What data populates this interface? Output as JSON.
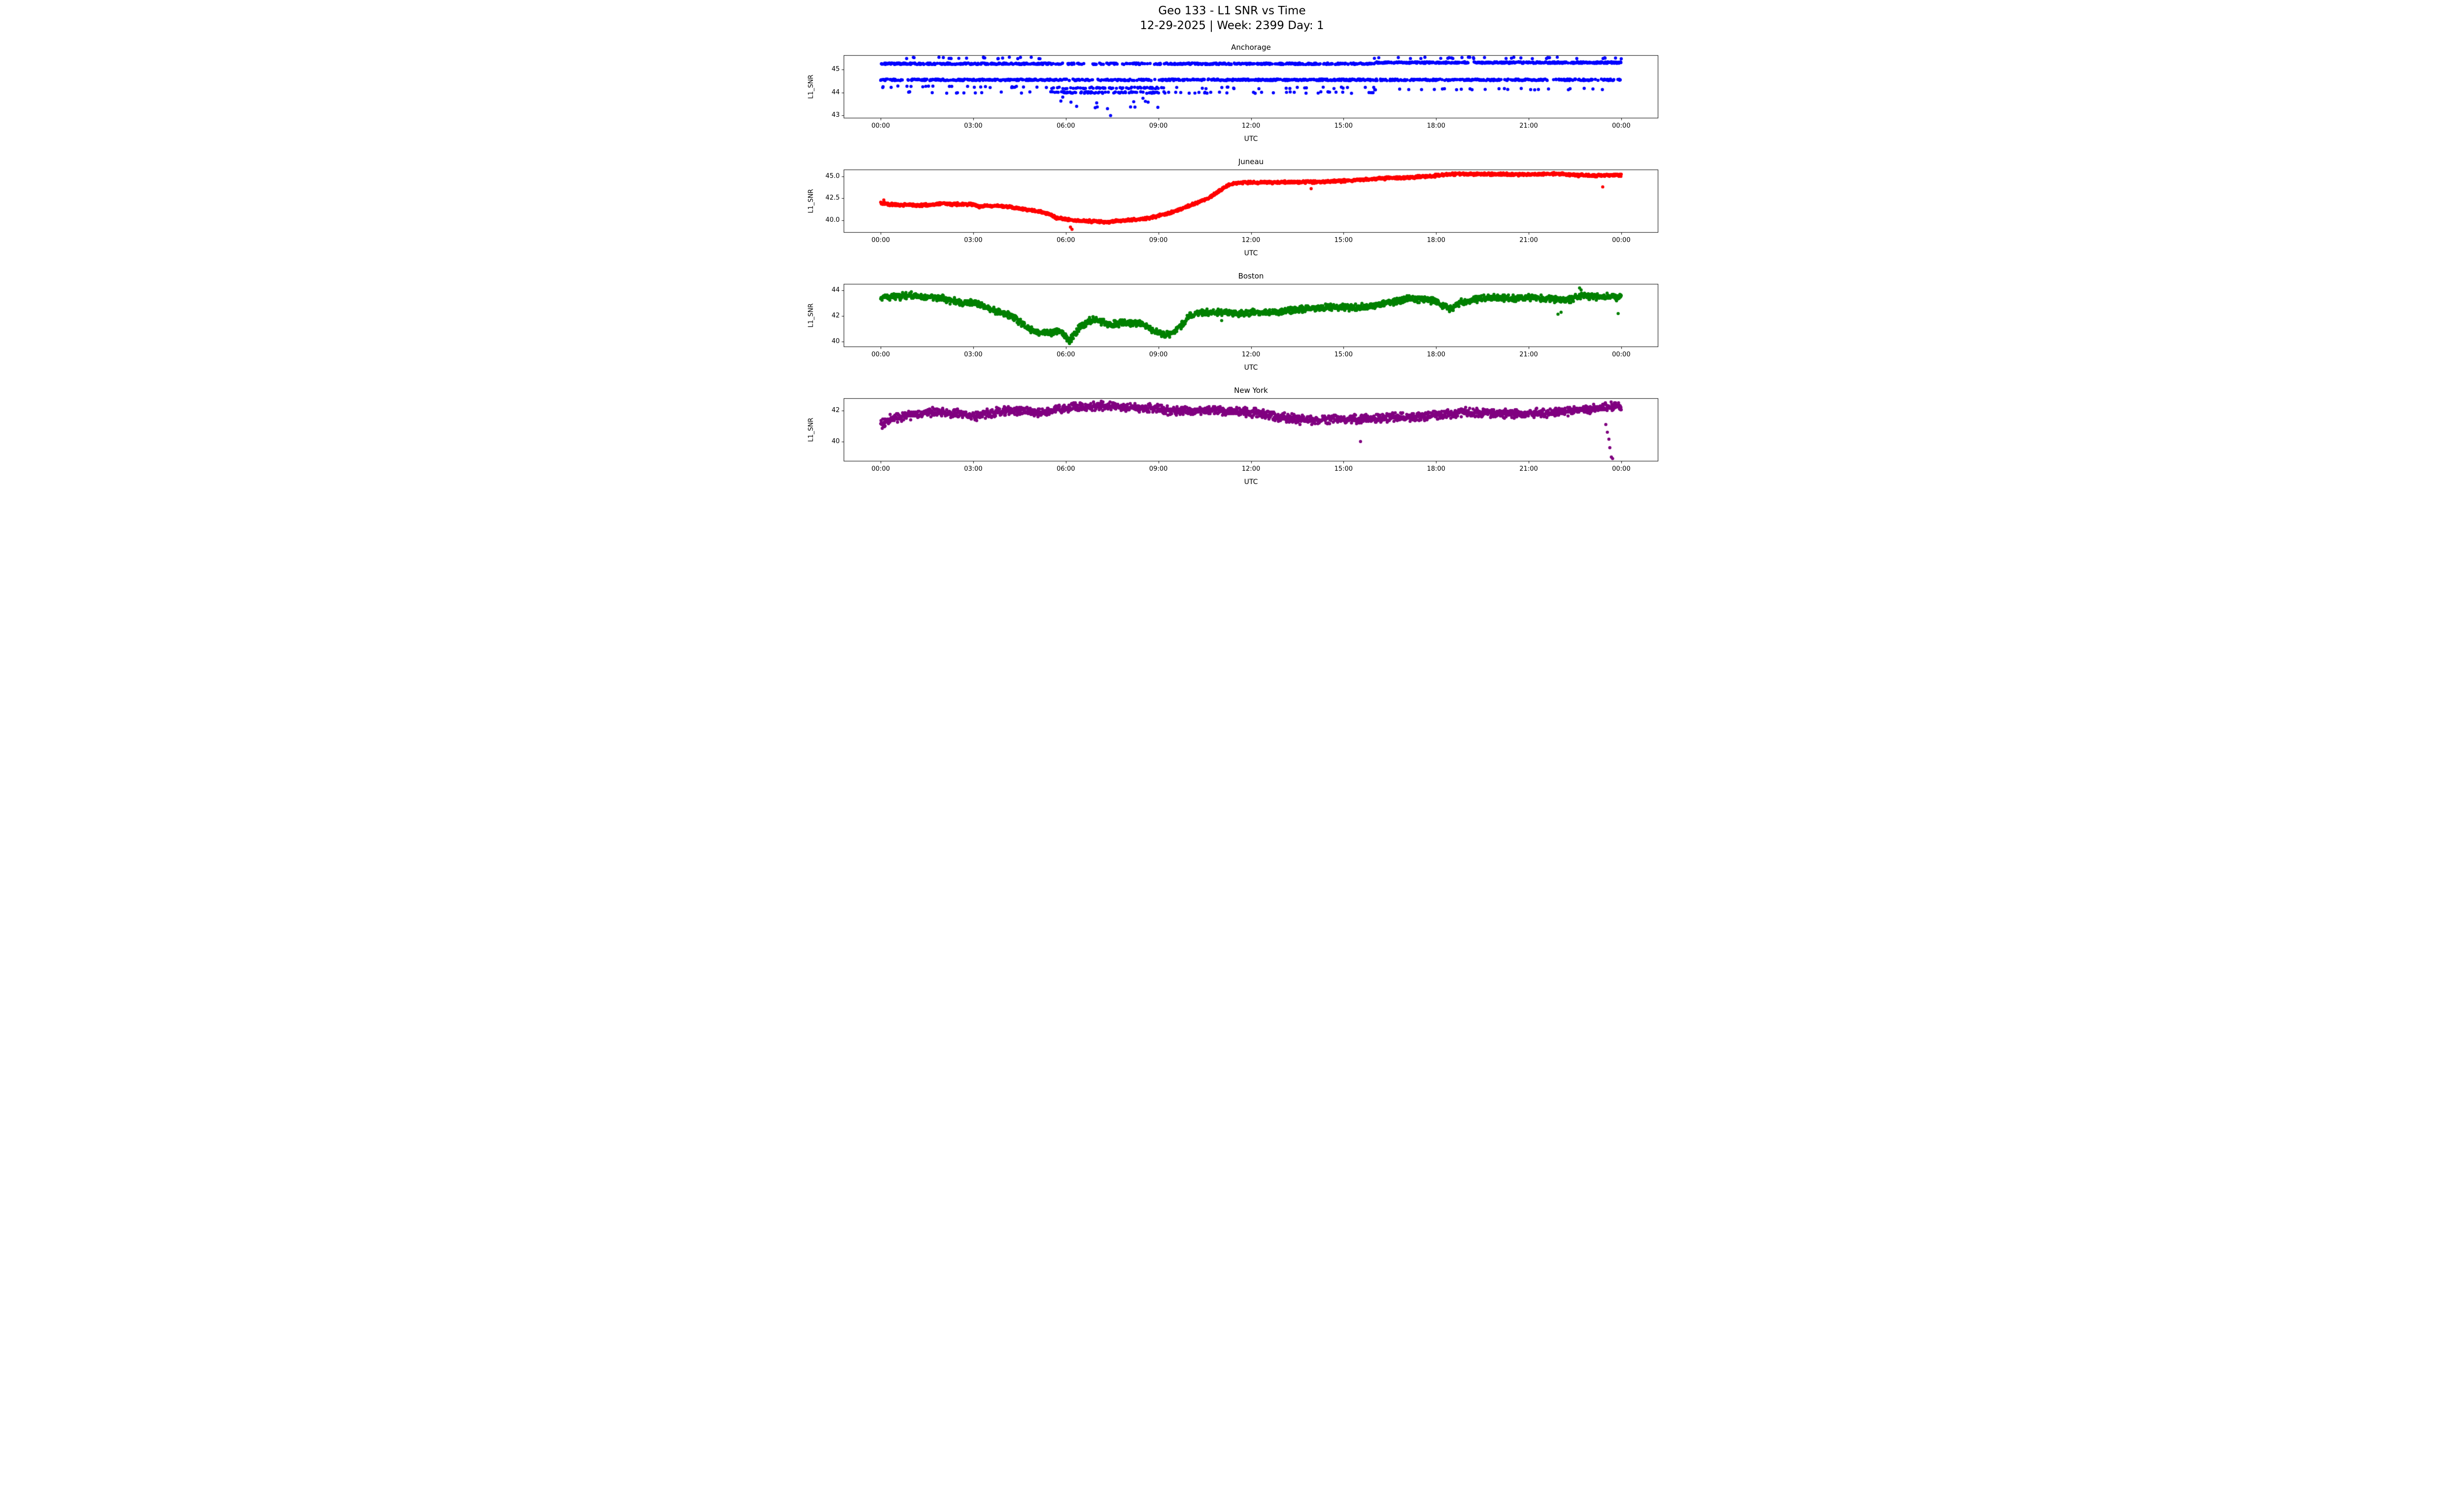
{
  "figure": {
    "title": "Geo 133 - L1 SNR vs Time",
    "subtitle": "12-29-2025 | Week: 2399 Day: 1"
  },
  "chart_data": {
    "type": "scatter",
    "title": "Geo 133 - L1 SNR vs Time",
    "subtitle": "12-29-2025 | Week: 2399 Day: 1",
    "xlabel": "UTC",
    "ylabel": "L1_SNR",
    "x_unit": "hours",
    "x_range": [
      0,
      24
    ],
    "xticks": [
      0,
      3,
      6,
      9,
      12,
      15,
      18,
      21,
      24
    ],
    "xtick_labels": [
      "00:00",
      "03:00",
      "06:00",
      "09:00",
      "12:00",
      "15:00",
      "18:00",
      "21:00",
      "00:00"
    ],
    "grid": false,
    "legend": "none",
    "marker_radius_px": 3.2,
    "points_per_series": 2200,
    "subplots": [
      {
        "name": "Anchorage",
        "color": "#0000ff",
        "ylim": [
          42.88,
          45.62
        ],
        "yticks": [
          43,
          44,
          45
        ],
        "ytick_labels": [
          "43",
          "44",
          "45"
        ],
        "mode": "bands",
        "band_segments": [
          {
            "t0": 0.0,
            "t1": 5.5,
            "levels": [
              [
                45.5,
                0.04
              ],
              [
                45.25,
                0.46
              ],
              [
                44.55,
                0.42
              ],
              [
                44.25,
                0.05
              ],
              [
                44.0,
                0.03
              ]
            ]
          },
          {
            "t0": 5.5,
            "t1": 9.0,
            "levels": [
              [
                45.25,
                0.2
              ],
              [
                44.55,
                0.34
              ],
              [
                44.2,
                0.2
              ],
              [
                44.0,
                0.22
              ],
              [
                43.6,
                0.02
              ],
              [
                43.35,
                0.02
              ]
            ]
          },
          {
            "t0": 9.0,
            "t1": 16.0,
            "levels": [
              [
                45.25,
                0.48
              ],
              [
                44.55,
                0.44
              ],
              [
                44.2,
                0.04
              ],
              [
                44.0,
                0.04
              ]
            ]
          },
          {
            "t0": 16.0,
            "t1": 24.0,
            "levels": [
              [
                45.5,
                0.05
              ],
              [
                45.3,
                0.5
              ],
              [
                44.55,
                0.4
              ],
              [
                44.15,
                0.05
              ]
            ]
          }
        ],
        "outliers": [
          [
            5.9,
            43.8
          ],
          [
            6.35,
            43.4
          ],
          [
            7.0,
            43.55
          ],
          [
            7.35,
            43.3
          ],
          [
            7.45,
            43.0
          ],
          [
            8.2,
            43.6
          ],
          [
            8.5,
            43.75
          ]
        ]
      },
      {
        "name": "Juneau",
        "color": "#ff0000",
        "ylim": [
          38.57,
          45.78
        ],
        "yticks": [
          40.0,
          42.5,
          45.0
        ],
        "ytick_labels": [
          "40.0",
          "42.5",
          "45.0"
        ],
        "mode": "trend",
        "noise": 0.18,
        "quantize": 0.05,
        "trend": [
          [
            0,
            41.95
          ],
          [
            0.25,
            41.8
          ],
          [
            0.7,
            41.75
          ],
          [
            1.2,
            41.7
          ],
          [
            1.7,
            41.75
          ],
          [
            2.0,
            41.95
          ],
          [
            2.2,
            41.85
          ],
          [
            2.6,
            41.8
          ],
          [
            3.0,
            41.8
          ],
          [
            3.2,
            41.55
          ],
          [
            3.5,
            41.65
          ],
          [
            3.9,
            41.6
          ],
          [
            4.3,
            41.45
          ],
          [
            4.7,
            41.2
          ],
          [
            5.0,
            41.05
          ],
          [
            5.3,
            40.85
          ],
          [
            5.5,
            40.6
          ],
          [
            5.7,
            40.25
          ],
          [
            6.0,
            40.1
          ],
          [
            6.3,
            39.95
          ],
          [
            6.7,
            39.9
          ],
          [
            7.1,
            39.85
          ],
          [
            7.4,
            39.75
          ],
          [
            7.7,
            39.95
          ],
          [
            8.1,
            40.0
          ],
          [
            8.5,
            40.15
          ],
          [
            8.9,
            40.4
          ],
          [
            9.3,
            40.75
          ],
          [
            9.7,
            41.2
          ],
          [
            10.0,
            41.65
          ],
          [
            10.3,
            42.05
          ],
          [
            10.6,
            42.5
          ],
          [
            10.85,
            43.0
          ],
          [
            11.05,
            43.5
          ],
          [
            11.25,
            44.0
          ],
          [
            11.45,
            44.2
          ],
          [
            11.7,
            44.3
          ],
          [
            12.5,
            44.3
          ],
          [
            13.2,
            44.35
          ],
          [
            14.0,
            44.35
          ],
          [
            14.8,
            44.45
          ],
          [
            15.5,
            44.6
          ],
          [
            16.2,
            44.75
          ],
          [
            17.0,
            44.85
          ],
          [
            17.7,
            45.0
          ],
          [
            18.3,
            45.2
          ],
          [
            19.0,
            45.3
          ],
          [
            20.0,
            45.25
          ],
          [
            21.0,
            45.2
          ],
          [
            21.8,
            45.3
          ],
          [
            22.5,
            45.15
          ],
          [
            23.2,
            45.1
          ],
          [
            24,
            45.15
          ]
        ],
        "outliers": [
          [
            0.1,
            42.3
          ],
          [
            6.15,
            39.2
          ],
          [
            6.2,
            38.95
          ],
          [
            13.95,
            43.6
          ],
          [
            23.4,
            43.8
          ]
        ]
      },
      {
        "name": "Boston",
        "color": "#008000",
        "ylim": [
          39.58,
          44.52
        ],
        "yticks": [
          40,
          42,
          44
        ],
        "ytick_labels": [
          "40",
          "42",
          "44"
        ],
        "mode": "trend",
        "noise": 0.3,
        "quantize": 0.05,
        "trend": [
          [
            0,
            43.45
          ],
          [
            0.5,
            43.55
          ],
          [
            1.0,
            43.6
          ],
          [
            1.5,
            43.5
          ],
          [
            2.0,
            43.4
          ],
          [
            2.4,
            43.15
          ],
          [
            2.7,
            43.0
          ],
          [
            3.0,
            43.1
          ],
          [
            3.3,
            42.85
          ],
          [
            3.6,
            42.5
          ],
          [
            3.9,
            42.3
          ],
          [
            4.2,
            42.0
          ],
          [
            4.5,
            41.6
          ],
          [
            4.8,
            41.0
          ],
          [
            5.1,
            40.75
          ],
          [
            5.5,
            40.7
          ],
          [
            5.8,
            40.85
          ],
          [
            6.0,
            40.35
          ],
          [
            6.1,
            40.05
          ],
          [
            6.25,
            40.5
          ],
          [
            6.45,
            41.15
          ],
          [
            6.7,
            41.55
          ],
          [
            6.9,
            41.75
          ],
          [
            7.1,
            41.6
          ],
          [
            7.4,
            41.35
          ],
          [
            7.8,
            41.45
          ],
          [
            8.2,
            41.5
          ],
          [
            8.6,
            41.25
          ],
          [
            8.9,
            40.75
          ],
          [
            9.2,
            40.55
          ],
          [
            9.5,
            40.7
          ],
          [
            9.75,
            41.3
          ],
          [
            10.0,
            42.0
          ],
          [
            10.4,
            42.25
          ],
          [
            11.0,
            42.3
          ],
          [
            11.6,
            42.2
          ],
          [
            12.2,
            42.3
          ],
          [
            12.8,
            42.3
          ],
          [
            13.4,
            42.5
          ],
          [
            14.0,
            42.6
          ],
          [
            14.7,
            42.7
          ],
          [
            15.3,
            42.65
          ],
          [
            16.0,
            42.8
          ],
          [
            16.6,
            43.1
          ],
          [
            17.1,
            43.35
          ],
          [
            17.6,
            43.3
          ],
          [
            18.0,
            43.15
          ],
          [
            18.25,
            42.7
          ],
          [
            18.5,
            42.6
          ],
          [
            18.8,
            43.05
          ],
          [
            19.2,
            43.3
          ],
          [
            19.8,
            43.45
          ],
          [
            20.5,
            43.4
          ],
          [
            21.2,
            43.45
          ],
          [
            21.9,
            43.3
          ],
          [
            22.4,
            43.3
          ],
          [
            22.7,
            43.6
          ],
          [
            23.1,
            43.5
          ],
          [
            23.6,
            43.55
          ],
          [
            24,
            43.5
          ]
        ],
        "outliers": [
          [
            6.12,
            39.85
          ],
          [
            6.18,
            40.0
          ],
          [
            11.05,
            41.65
          ],
          [
            21.95,
            42.15
          ],
          [
            22.05,
            42.3
          ],
          [
            22.65,
            44.2
          ],
          [
            22.7,
            44.05
          ],
          [
            23.9,
            42.2
          ]
        ]
      },
      {
        "name": "New York",
        "color": "#800080",
        "ylim": [
          38.72,
          42.79
        ],
        "yticks": [
          40,
          42
        ],
        "ytick_labels": [
          "40",
          "42"
        ],
        "mode": "trend",
        "noise": 0.33,
        "quantize": 0.05,
        "trend": [
          [
            0,
            41.15
          ],
          [
            0.3,
            41.45
          ],
          [
            0.7,
            41.6
          ],
          [
            1.2,
            41.75
          ],
          [
            1.7,
            41.9
          ],
          [
            2.2,
            41.85
          ],
          [
            2.7,
            41.75
          ],
          [
            3.1,
            41.65
          ],
          [
            3.5,
            41.8
          ],
          [
            4.0,
            42.0
          ],
          [
            4.6,
            41.95
          ],
          [
            5.1,
            41.85
          ],
          [
            5.5,
            42.0
          ],
          [
            6.0,
            42.15
          ],
          [
            6.6,
            42.25
          ],
          [
            7.2,
            42.3
          ],
          [
            7.8,
            42.25
          ],
          [
            8.4,
            42.2
          ],
          [
            9.0,
            42.15
          ],
          [
            9.4,
            41.95
          ],
          [
            9.8,
            41.95
          ],
          [
            10.4,
            42.0
          ],
          [
            11.0,
            42.0
          ],
          [
            11.6,
            41.9
          ],
          [
            12.2,
            41.85
          ],
          [
            12.7,
            41.65
          ],
          [
            13.2,
            41.5
          ],
          [
            13.8,
            41.4
          ],
          [
            14.5,
            41.4
          ],
          [
            15.2,
            41.45
          ],
          [
            16.0,
            41.5
          ],
          [
            16.8,
            41.55
          ],
          [
            17.5,
            41.6
          ],
          [
            18.2,
            41.75
          ],
          [
            18.9,
            41.9
          ],
          [
            19.6,
            41.85
          ],
          [
            20.3,
            41.8
          ],
          [
            21.0,
            41.8
          ],
          [
            21.7,
            41.85
          ],
          [
            22.3,
            41.95
          ],
          [
            22.9,
            42.05
          ],
          [
            23.4,
            42.2
          ],
          [
            23.8,
            42.3
          ],
          [
            24,
            42.25
          ]
        ],
        "outliers": [
          [
            0.05,
            40.85
          ],
          [
            0.12,
            40.95
          ],
          [
            15.55,
            40.0
          ],
          [
            23.5,
            41.1
          ],
          [
            23.55,
            40.6
          ],
          [
            23.6,
            40.15
          ],
          [
            23.63,
            39.6
          ],
          [
            23.68,
            39.0
          ],
          [
            23.72,
            38.9
          ]
        ]
      }
    ]
  }
}
